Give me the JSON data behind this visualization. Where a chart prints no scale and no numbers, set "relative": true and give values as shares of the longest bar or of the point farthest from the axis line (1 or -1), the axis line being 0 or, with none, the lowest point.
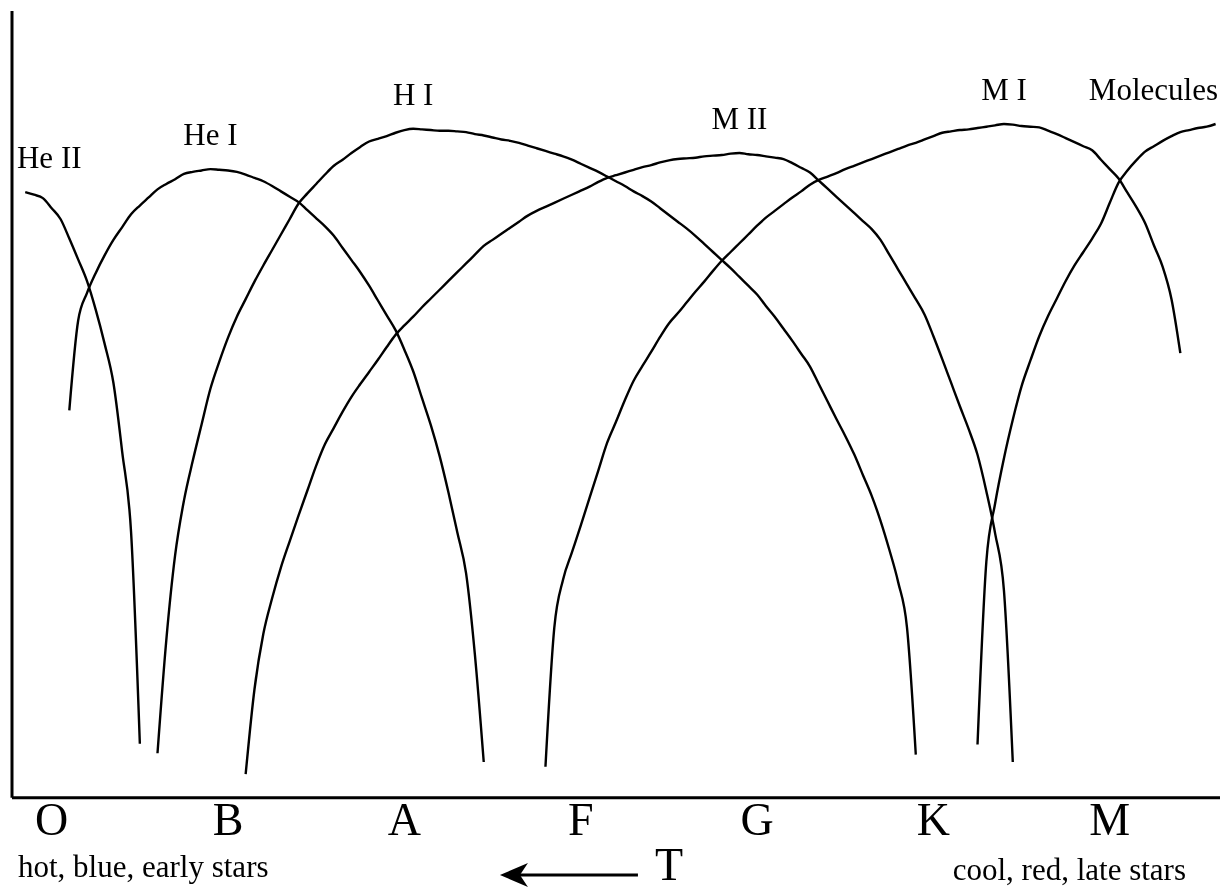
{
  "chart_data": {
    "type": "line",
    "relative": true,
    "xlabel": "T",
    "annotations": [
      "hot, blue, early stars",
      "cool, red, late stars"
    ],
    "categories": [
      null,
      null,
      null,
      null,
      "O",
      null,
      null,
      null,
      null,
      null,
      null,
      null,
      null,
      null,
      null,
      null,
      null,
      null,
      null,
      null,
      null,
      null,
      null,
      null,
      "B",
      null,
      null,
      null,
      null,
      null,
      null,
      null,
      null,
      null,
      null,
      null,
      null,
      null,
      null,
      null,
      null,
      null,
      null,
      null,
      "A",
      null,
      null,
      null,
      null,
      null,
      null,
      null,
      null,
      null,
      null,
      null,
      null,
      null,
      null,
      null,
      null,
      null,
      null,
      null,
      "F",
      null,
      null,
      null,
      null,
      null,
      null,
      null,
      null,
      null,
      null,
      null,
      null,
      null,
      null,
      null,
      null,
      null,
      null,
      null,
      "G",
      null,
      null,
      null,
      null,
      null,
      null,
      null,
      null,
      null,
      null,
      null,
      null,
      null,
      null,
      null,
      null,
      null,
      null,
      null,
      "K",
      null,
      null,
      null,
      null,
      null,
      null,
      null,
      null,
      null,
      null,
      null,
      null,
      null,
      null,
      null,
      null,
      null,
      null,
      null,
      "M",
      null,
      null,
      null,
      null,
      null,
      null,
      null,
      null,
      null,
      null,
      null,
      null
    ],
    "series": [
      {
        "name": "He II",
        "color": "#000000",
        "values": [
          null,
          0.899,
          0.895,
          0.89,
          0.875,
          0.859,
          0.83,
          0.799,
          0.767,
          0.724,
          0.674,
          0.616,
          0.513,
          0.395,
          0.08,
          null,
          null,
          null,
          null,
          null,
          null,
          null,
          null,
          null,
          null,
          null,
          null,
          null,
          null,
          null,
          null,
          null,
          null,
          null,
          null,
          null,
          null,
          null,
          null,
          null,
          null,
          null,
          null,
          null,
          null,
          null,
          null,
          null,
          null,
          null,
          null,
          null,
          null,
          null,
          null,
          null,
          null,
          null,
          null,
          null,
          null,
          null,
          null,
          null,
          null,
          null,
          null,
          null,
          null,
          null,
          null,
          null,
          null,
          null,
          null,
          null,
          null,
          null,
          null,
          null,
          null,
          null,
          null,
          null,
          null,
          null,
          null,
          null,
          null,
          null,
          null,
          null,
          null,
          null,
          null,
          null,
          null,
          null,
          null,
          null,
          null,
          null,
          null,
          null,
          null,
          null,
          null,
          null,
          null,
          null,
          null,
          null,
          null,
          null,
          null,
          null,
          null,
          null,
          null,
          null,
          null,
          null,
          null,
          null,
          null,
          null,
          null,
          null,
          null,
          null,
          null,
          null,
          null,
          null,
          null,
          null,
          null
        ]
      },
      {
        "name": "He I",
        "color": "#000000",
        "values": [
          null,
          null,
          null,
          null,
          null,
          null,
          0.575,
          0.708,
          0.749,
          0.779,
          0.805,
          0.828,
          0.847,
          0.866,
          0.879,
          0.891,
          0.903,
          0.911,
          0.918,
          0.926,
          0.929,
          0.931,
          0.933,
          0.932,
          0.931,
          0.929,
          0.925,
          0.92,
          0.915,
          0.908,
          0.9,
          0.892,
          0.884,
          0.872,
          0.86,
          0.848,
          0.834,
          0.816,
          0.798,
          0.78,
          0.76,
          0.738,
          0.716,
          0.694,
          0.665,
          0.633,
          0.593,
          0.553,
          0.507,
          0.453,
          0.394,
          0.333,
          0.212,
          0.053,
          null,
          null,
          null,
          null,
          null,
          null,
          null,
          null,
          null,
          null,
          null,
          null,
          null,
          null,
          null,
          null,
          null,
          null,
          null,
          null,
          null,
          null,
          null,
          null,
          null,
          null,
          null,
          null,
          null,
          null,
          null,
          null,
          null,
          null,
          null,
          null,
          null,
          null,
          null,
          null,
          null,
          null,
          null,
          null,
          null,
          null,
          null,
          null,
          null,
          null,
          null,
          null,
          null,
          null,
          null,
          null,
          null,
          null,
          null,
          null,
          null,
          null,
          null,
          null,
          null,
          null,
          null,
          null,
          null,
          null,
          null,
          null,
          null,
          null,
          null,
          null,
          null,
          null,
          null,
          null,
          null,
          null,
          null
        ]
      },
      {
        "name": "H I",
        "color": "#000000",
        "values": [
          null,
          null,
          null,
          null,
          null,
          null,
          null,
          null,
          null,
          null,
          null,
          null,
          null,
          null,
          null,
          null,
          0.066,
          0.234,
          0.36,
          0.441,
          0.5,
          0.554,
          0.607,
          0.647,
          0.683,
          0.714,
          0.74,
          0.766,
          0.79,
          0.813,
          0.836,
          0.859,
          0.882,
          0.897,
          0.911,
          0.925,
          0.938,
          0.947,
          0.957,
          0.966,
          0.974,
          0.978,
          0.982,
          0.987,
          0.991,
          0.993,
          0.992,
          0.991,
          0.99,
          0.99,
          0.989,
          0.988,
          0.985,
          0.983,
          0.98,
          0.977,
          0.975,
          0.972,
          0.968,
          0.964,
          0.96,
          0.956,
          0.952,
          0.947,
          0.941,
          0.935,
          0.929,
          0.922,
          0.915,
          0.908,
          0.9,
          0.893,
          0.885,
          0.875,
          0.865,
          0.855,
          0.845,
          0.834,
          0.822,
          0.81,
          0.798,
          0.786,
          0.773,
          0.76,
          0.747,
          0.73,
          0.714,
          0.696,
          0.678,
          0.659,
          0.64,
          0.614,
          0.588,
          0.562,
          0.537,
          0.51,
          0.479,
          0.448,
          0.411,
          0.368,
          0.32,
          0.253,
          0.064,
          null,
          null,
          null,
          null,
          null,
          null,
          null,
          null,
          null,
          null,
          null,
          null,
          null,
          null,
          null,
          null,
          null,
          null,
          null,
          null,
          null,
          null,
          null,
          null,
          null,
          null,
          null,
          null,
          null,
          null,
          null,
          null,
          null,
          null
        ]
      },
      {
        "name": "M II",
        "color": "#000000",
        "values": [
          null,
          null,
          null,
          null,
          null,
          null,
          null,
          null,
          null,
          null,
          null,
          null,
          null,
          null,
          null,
          null,
          null,
          null,
          null,
          null,
          null,
          null,
          null,
          null,
          null,
          null,
          0.035,
          0.161,
          0.243,
          0.296,
          0.342,
          0.381,
          0.419,
          0.456,
          0.493,
          0.525,
          0.549,
          0.573,
          0.595,
          0.614,
          0.632,
          0.65,
          0.669,
          0.687,
          0.701,
          0.714,
          0.728,
          0.741,
          0.754,
          0.767,
          0.78,
          0.793,
          0.806,
          0.819,
          0.828,
          0.837,
          0.846,
          0.855,
          0.864,
          0.871,
          0.877,
          0.883,
          0.889,
          0.895,
          0.901,
          0.907,
          0.914,
          0.92,
          0.924,
          0.928,
          0.932,
          0.936,
          0.939,
          0.943,
          0.946,
          0.948,
          0.949,
          0.95,
          0.952,
          0.953,
          0.954,
          0.956,
          0.957,
          0.955,
          0.954,
          0.952,
          0.95,
          0.948,
          0.942,
          0.935,
          0.928,
          0.916,
          0.904,
          0.892,
          0.88,
          0.868,
          0.856,
          0.844,
          0.828,
          0.806,
          0.784,
          0.762,
          0.74,
          0.717,
          0.685,
          0.651,
          0.616,
          0.581,
          0.547,
          0.509,
          0.455,
          0.392,
          0.307,
          0.053,
          null,
          null,
          null,
          null,
          null,
          null,
          null,
          null,
          null,
          null,
          null,
          null,
          null,
          null,
          null,
          null,
          null,
          null,
          null,
          null,
          null,
          null,
          null
        ]
      },
      {
        "name": "M I",
        "color": "#000000",
        "values": [
          null,
          null,
          null,
          null,
          null,
          null,
          null,
          null,
          null,
          null,
          null,
          null,
          null,
          null,
          null,
          null,
          null,
          null,
          null,
          null,
          null,
          null,
          null,
          null,
          null,
          null,
          null,
          null,
          null,
          null,
          null,
          null,
          null,
          null,
          null,
          null,
          null,
          null,
          null,
          null,
          null,
          null,
          null,
          null,
          null,
          null,
          null,
          null,
          null,
          null,
          null,
          null,
          null,
          null,
          null,
          null,
          null,
          null,
          null,
          null,
          0.046,
          0.252,
          0.324,
          0.364,
          0.404,
          0.445,
          0.486,
          0.527,
          0.558,
          0.59,
          0.619,
          0.641,
          0.662,
          0.684,
          0.704,
          0.719,
          0.735,
          0.751,
          0.766,
          0.782,
          0.797,
          0.81,
          0.823,
          0.836,
          0.849,
          0.861,
          0.871,
          0.881,
          0.891,
          0.9,
          0.91,
          0.917,
          0.922,
          0.927,
          0.933,
          0.938,
          0.943,
          0.948,
          0.953,
          0.958,
          0.963,
          0.968,
          0.972,
          0.977,
          0.982,
          0.987,
          0.989,
          0.991,
          0.992,
          0.994,
          0.996,
          0.998,
          1.0,
          0.999,
          0.997,
          0.996,
          0.995,
          0.99,
          0.985,
          0.979,
          0.973,
          0.967,
          0.961,
          0.947,
          0.933,
          0.919,
          0.898,
          0.877,
          0.853,
          0.82,
          0.788,
          0.74,
          0.66,
          null,
          null,
          null,
          null
        ]
      },
      {
        "name": "Molecules",
        "color": "#000000",
        "values": [
          null,
          null,
          null,
          null,
          null,
          null,
          null,
          null,
          null,
          null,
          null,
          null,
          null,
          null,
          null,
          null,
          null,
          null,
          null,
          null,
          null,
          null,
          null,
          null,
          null,
          null,
          null,
          null,
          null,
          null,
          null,
          null,
          null,
          null,
          null,
          null,
          null,
          null,
          null,
          null,
          null,
          null,
          null,
          null,
          null,
          null,
          null,
          null,
          null,
          null,
          null,
          null,
          null,
          null,
          null,
          null,
          null,
          null,
          null,
          null,
          null,
          null,
          null,
          null,
          null,
          null,
          null,
          null,
          null,
          null,
          null,
          null,
          null,
          null,
          null,
          null,
          null,
          null,
          null,
          null,
          null,
          null,
          null,
          null,
          null,
          null,
          null,
          null,
          null,
          null,
          null,
          null,
          null,
          null,
          null,
          null,
          null,
          null,
          null,
          null,
          null,
          null,
          null,
          null,
          null,
          null,
          null,
          null,
          null,
          0.079,
          0.35,
          0.437,
          0.504,
          0.561,
          0.611,
          0.649,
          0.685,
          0.715,
          0.741,
          0.767,
          0.79,
          0.81,
          0.83,
          0.852,
          0.883,
          0.913,
          0.931,
          0.946,
          0.959,
          0.967,
          0.975,
          0.982,
          0.988,
          0.991,
          0.994,
          0.996,
          1.0
        ]
      }
    ]
  }
}
